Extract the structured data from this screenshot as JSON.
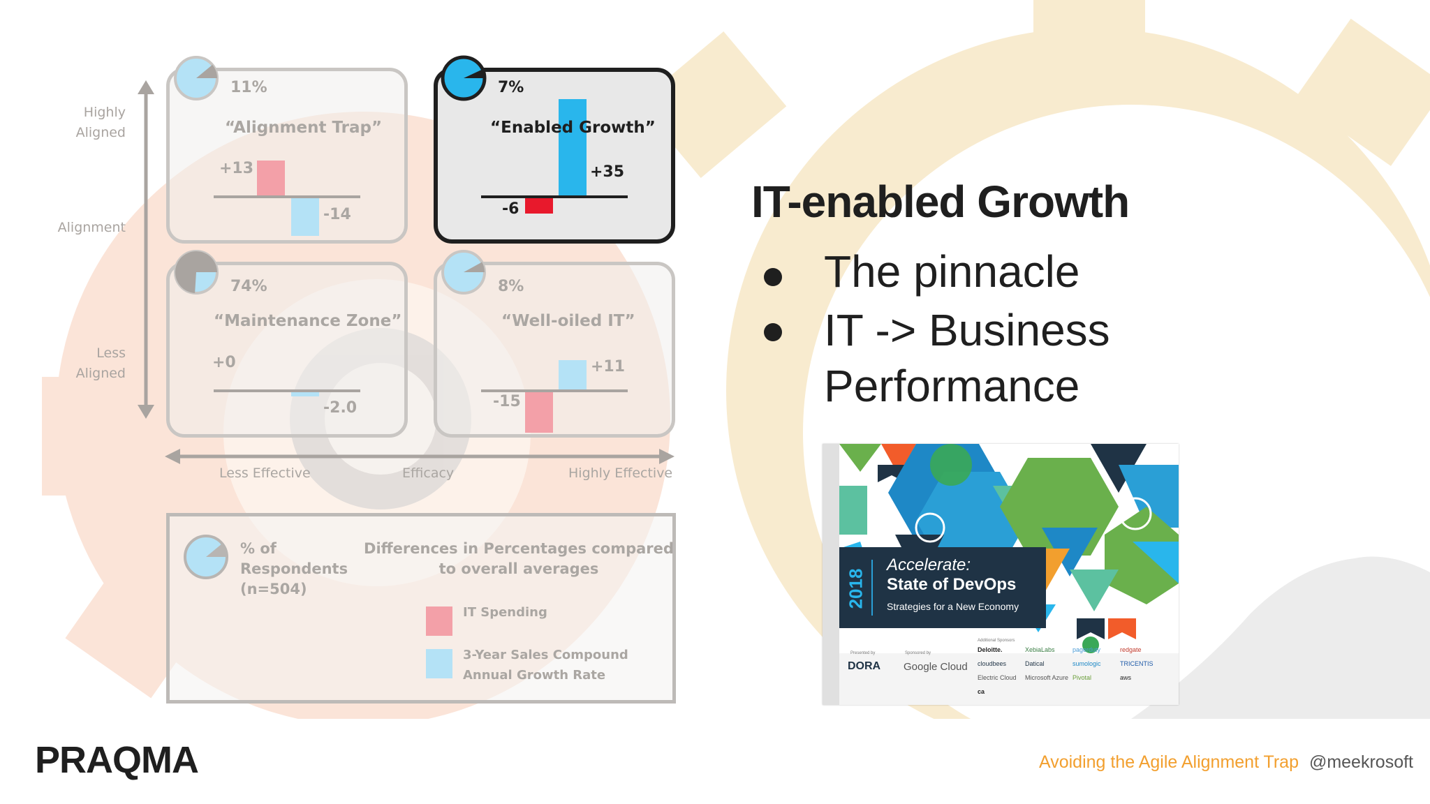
{
  "axes": {
    "y_top": "Highly\nAligned",
    "y_mid": "Alignment",
    "y_bottom": "Less\nAligned",
    "x_left": "Less Effective",
    "x_mid": "Efficacy",
    "x_right": "Highly Effective"
  },
  "quadrants": [
    {
      "percent": "11%",
      "pie_fraction": 0.11,
      "title": "“Alignment Trap”",
      "it_spending": 13,
      "it_label": "+13",
      "growth": -14,
      "growth_label": "-14",
      "active": false
    },
    {
      "percent": "7%",
      "pie_fraction": 0.07,
      "title": "“Enabled Growth”",
      "it_spending": -6,
      "it_label": "-6",
      "growth": 35,
      "growth_label": "+35",
      "active": true
    },
    {
      "percent": "74%",
      "pie_fraction": 0.74,
      "title": "“Maintenance Zone”",
      "it_spending": 0,
      "it_label": "+0",
      "growth": -2.0,
      "growth_label": "-2.0",
      "active": false
    },
    {
      "percent": "8%",
      "pie_fraction": 0.08,
      "title": "“Well-oiled IT”",
      "it_spending": -15,
      "it_label": "-15",
      "growth": 11,
      "growth_label": "+11",
      "active": false
    }
  ],
  "legend": {
    "pie_label": "% of\nRespondents\n(n=504)",
    "diff_title": "Differences in Percentages compared\nto overall averages",
    "it_spending": "IT Spending",
    "growth": "3-Year Sales Compound\nAnnual Growth Rate"
  },
  "heading": "IT-enabled Growth",
  "bullets": [
    "The pinnacle",
    "IT -> Business\nPerformance"
  ],
  "report": {
    "year": "2018",
    "title_italic": "Accelerate:",
    "title": "State of DevOps",
    "subtitle": "Strategies for a New Economy",
    "presented_by": "Presented by",
    "presenter": "DORA",
    "sponsored_by": "Sponsored by",
    "sponsor": "Google Cloud",
    "additional_sponsors": "Additional Sponsors",
    "sponsors": [
      "Deloitte.",
      "XebiaLabs",
      "pagerduty",
      "redgate",
      "cloudbees",
      "Datical",
      "sumologic",
      "TRICENTIS",
      "Electric Cloud",
      "Microsoft Azure",
      "Pivotal",
      "aws",
      "ca"
    ]
  },
  "footer": {
    "logo": "PRAQMA",
    "talk_title": "Avoiding the Agile Alignment Trap",
    "handle": "@meekrosoft"
  },
  "colors": {
    "pink": "#f3a0a8",
    "light_blue": "#b4e2f6",
    "red": "#e8192c",
    "blue": "#29b6ec",
    "orange": "#f29f2e",
    "dark": "#1f1f1f"
  }
}
